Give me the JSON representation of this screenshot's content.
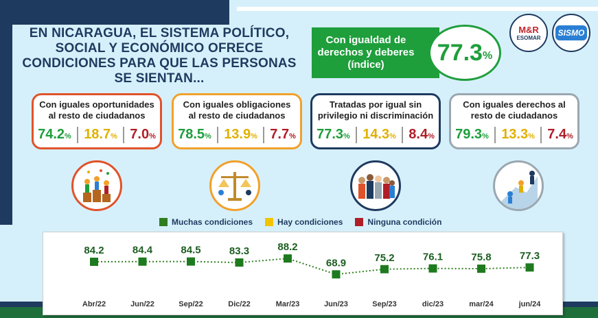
{
  "headline": "EN NICARAGUA, EL SISTEMA POLÍTICO, SOCIAL Y ECONÓMICO OFRECE CONDICIONES PARA QUE LAS PERSONAS SE SIENTAN...",
  "index": {
    "label_line1": "Con igualdad de",
    "label_line2": "derechos y deberes",
    "label_line3": "(índice)",
    "value": "77.3",
    "unit": "%"
  },
  "logos": {
    "mr_text": "M&R",
    "esomar_text": "ESOMAR",
    "sismo_text": "SISMO"
  },
  "colors": {
    "green": "#1f9e3c",
    "yellow": "#e0b000",
    "red": "#b01e28",
    "navy": "#1e3a5f"
  },
  "cards": [
    {
      "title_line1": "Con iguales oportunidades",
      "title_line2": "al resto de ciudadanos",
      "muchas": "74.2",
      "hay": "18.7",
      "ninguna": "7.0",
      "border": "#e0522a"
    },
    {
      "title_line1": "Con iguales obligaciones",
      "title_line2": "al resto de ciudadanos",
      "muchas": "78.5",
      "hay": "13.9",
      "ninguna": "7.7",
      "border": "#f2a02a"
    },
    {
      "title_line1": "Tratadas por igual sin",
      "title_line2": "privilegio ni discriminación",
      "muchas": "77.3",
      "hay": "14.3",
      "ninguna": "8.4",
      "border": "#1e3a5f"
    },
    {
      "title_line1": "Con iguales derechos al",
      "title_line2": "resto de ciudadanos",
      "muchas": "79.3",
      "hay": "13.3",
      "ninguna": "7.4",
      "border": "#9aa7b0"
    }
  ],
  "percent_sign": "%",
  "legend": {
    "muchas": "Muchas condiciones",
    "hay": "Hay condiciones",
    "ninguna": "Ninguna condición"
  },
  "chart_data": {
    "type": "line",
    "categories": [
      "Abr/22",
      "Jun/22",
      "Sep/22",
      "Dic/22",
      "Mar/23",
      "Jun/23",
      "Sep/23",
      "dic/23",
      "mar/24",
      "jun/24"
    ],
    "series": [
      {
        "values": [
          84.2,
          84.4,
          84.5,
          83.3,
          88.2,
          68.9,
          75.2,
          76.1,
          75.8,
          77.3
        ]
      }
    ],
    "ylim": [
      0,
      100
    ],
    "grid": false
  }
}
